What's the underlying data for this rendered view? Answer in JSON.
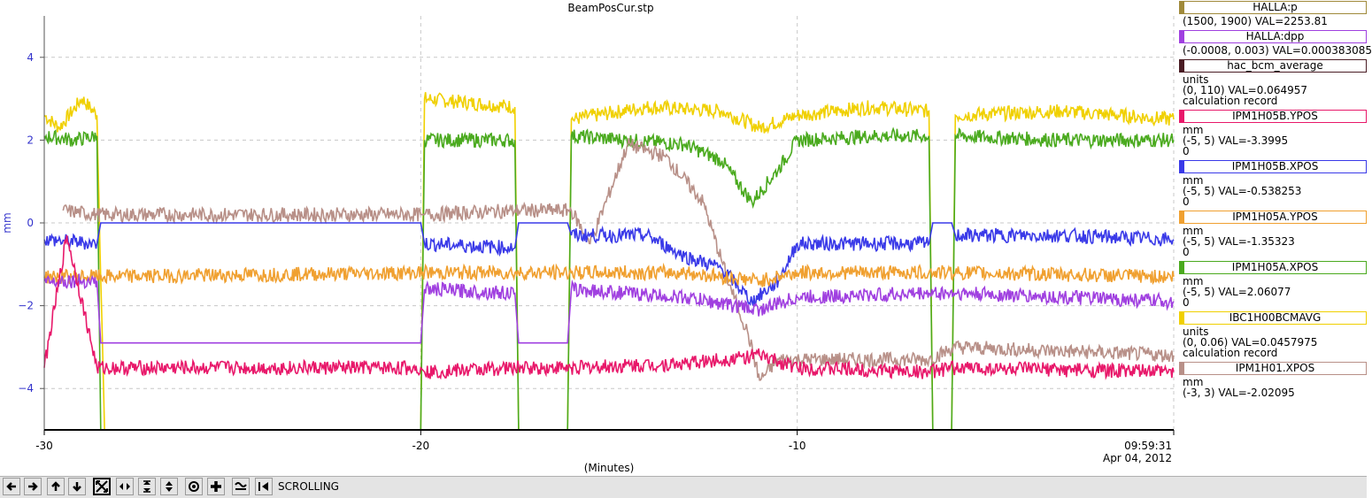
{
  "title": "BeamPosCur.stp",
  "y_axis_label": "mm",
  "x_axis_label": "(Minutes)",
  "end_time": "09:59:31",
  "end_date": "Apr 04, 2012",
  "axis_color": "#3333cc",
  "toolbar_label": "SCROLLING",
  "toolbar_icons": [
    "arrow-left-icon",
    "arrow-right-icon",
    "arrow-up-icon",
    "arrow-down-icon",
    "zoom-box-icon",
    "horizontal-zoom-icon",
    "vertical-zoom-icon",
    "vertical-pan-icon",
    "record-icon",
    "add-icon",
    "waveform-icon",
    "scroll-back-icon"
  ],
  "legend": [
    {
      "name": "HALLA:p",
      "color": "#a08a3a",
      "lines": [
        "(1500, 1900) VAL=2253.81"
      ]
    },
    {
      "name": "HALLA:dpp",
      "color": "#a040e0",
      "lines": [
        "(-0.0008, 0.003) VAL=0.000383085"
      ]
    },
    {
      "name": "hac_bcm_average",
      "color": "#4a1c24",
      "lines": [
        "units",
        "(0, 110) VAL=0.064957",
        "calculation record"
      ]
    },
    {
      "name": "IPM1H05B.YPOS",
      "color": "#e8186a",
      "lines": [
        "mm",
        "(-5, 5) VAL=-3.3995",
        "0"
      ]
    },
    {
      "name": "IPM1H05B.XPOS",
      "color": "#3a3ae8",
      "lines": [
        "mm",
        "(-5, 5) VAL=-0.538253",
        "0"
      ]
    },
    {
      "name": "IPM1H05A.YPOS",
      "color": "#f0a030",
      "lines": [
        "mm",
        "(-5, 5) VAL=-1.35323",
        "0"
      ]
    },
    {
      "name": "IPM1H05A.XPOS",
      "color": "#4aaa1e",
      "lines": [
        "mm",
        "(-5, 5) VAL=2.06077",
        "0"
      ]
    },
    {
      "name": "IBC1H00BCMAVG",
      "color": "#f0d000",
      "lines": [
        "units",
        "(0, 0.06) VAL=0.0457975",
        "calculation record"
      ]
    },
    {
      "name": "IPM1H01.XPOS",
      "color": "#b89088",
      "lines": [
        "mm",
        "(-3, 3) VAL=-2.02095"
      ]
    }
  ],
  "chart_data": {
    "type": "line",
    "title": "BeamPosCur.stp",
    "xlabel": "(Minutes)",
    "ylabel": "mm",
    "xlim": [
      -30,
      0
    ],
    "ylim": [
      -5,
      5
    ],
    "x_ticks": [
      -30,
      -20,
      -10
    ],
    "y_ticks": [
      -4,
      -2,
      0,
      2,
      4
    ],
    "grid": true,
    "legend_placement": "right",
    "series": [
      {
        "name": "IBC1H00BCMAVG",
        "color": "#f0d000",
        "points": [
          [
            -30,
            2.6
          ],
          [
            -29.6,
            2.3
          ],
          [
            -29,
            3.0
          ],
          [
            -28.6,
            2.6
          ],
          [
            -28.4,
            -5
          ],
          [
            -20,
            -5
          ],
          [
            -19.9,
            3.0
          ],
          [
            -17.5,
            2.8
          ],
          [
            -17.4,
            -5
          ],
          [
            -16.1,
            -5
          ],
          [
            -16.0,
            2.5
          ],
          [
            -14,
            2.8
          ],
          [
            -12,
            2.7
          ],
          [
            -11,
            2.3
          ],
          [
            -10,
            2.6
          ],
          [
            -8,
            2.8
          ],
          [
            -6.5,
            2.7
          ],
          [
            -6.4,
            -5
          ],
          [
            -5.9,
            -5
          ],
          [
            -5.8,
            2.6
          ],
          [
            -3,
            2.7
          ],
          [
            0,
            2.5
          ]
        ]
      },
      {
        "name": "IPM1H05A.XPOS",
        "color": "#4aaa1e",
        "points": [
          [
            -30,
            2.1
          ],
          [
            -29.2,
            2.0
          ],
          [
            -28.6,
            2.1
          ],
          [
            -28.5,
            -5
          ],
          [
            -20,
            -5
          ],
          [
            -19.9,
            2.0
          ],
          [
            -17.5,
            2.0
          ],
          [
            -17.4,
            -5
          ],
          [
            -16.1,
            -5
          ],
          [
            -16.0,
            2.1
          ],
          [
            -13,
            1.9
          ],
          [
            -12,
            1.5
          ],
          [
            -11.2,
            0.5
          ],
          [
            -10.5,
            1.3
          ],
          [
            -10,
            2.0
          ],
          [
            -8,
            2.1
          ],
          [
            -6.5,
            2.1
          ],
          [
            -6.4,
            -5
          ],
          [
            -5.9,
            -5
          ],
          [
            -5.8,
            2.1
          ],
          [
            -3,
            2.0
          ],
          [
            0,
            2.0
          ]
        ]
      },
      {
        "name": "IPM1H01.XPOS",
        "color": "#b89088",
        "points": [
          [
            -29.5,
            0.3
          ],
          [
            -28.6,
            0.2
          ],
          [
            -20,
            0.2
          ],
          [
            -19.9,
            0.2
          ],
          [
            -17.5,
            0.3
          ],
          [
            -16.0,
            0.3
          ],
          [
            -15.5,
            -0.5
          ],
          [
            -14.5,
            1.9
          ],
          [
            -13.5,
            1.6
          ],
          [
            -12.5,
            0.5
          ],
          [
            -11.8,
            -1.5
          ],
          [
            -11.3,
            -2.7
          ],
          [
            -11.0,
            -3.8
          ],
          [
            -10.5,
            -3.3
          ],
          [
            -6.5,
            -3.3
          ],
          [
            -5.8,
            -3.0
          ],
          [
            0,
            -3.2
          ]
        ]
      },
      {
        "name": "IPM1H05B.XPOS",
        "color": "#3a3ae8",
        "points": [
          [
            -30,
            -0.4
          ],
          [
            -28.6,
            -0.5
          ],
          [
            -28.5,
            0
          ],
          [
            -20,
            0
          ],
          [
            -19.9,
            -0.5
          ],
          [
            -17.5,
            -0.6
          ],
          [
            -17.4,
            0
          ],
          [
            -16.1,
            0
          ],
          [
            -16.0,
            -0.3
          ],
          [
            -14,
            -0.3
          ],
          [
            -13,
            -0.8
          ],
          [
            -12,
            -1.1
          ],
          [
            -11.2,
            -1.9
          ],
          [
            -10.5,
            -1.4
          ],
          [
            -10,
            -0.5
          ],
          [
            -6.5,
            -0.5
          ],
          [
            -6.4,
            0
          ],
          [
            -5.9,
            0
          ],
          [
            -5.8,
            -0.3
          ],
          [
            -3,
            -0.3
          ],
          [
            0,
            -0.4
          ]
        ]
      },
      {
        "name": "IPM1H05A.YPOS",
        "color": "#f0a030",
        "points": [
          [
            -30,
            -1.3
          ],
          [
            -28.6,
            -1.3
          ],
          [
            -19.9,
            -1.2
          ],
          [
            -17.5,
            -1.2
          ],
          [
            -16.0,
            -1.2
          ],
          [
            -13,
            -1.2
          ],
          [
            -11,
            -1.4
          ],
          [
            -10,
            -1.2
          ],
          [
            -6.5,
            -1.2
          ],
          [
            -5.8,
            -1.2
          ],
          [
            0,
            -1.3
          ]
        ]
      },
      {
        "name": "HALLA:dpp",
        "color": "#a040e0",
        "points": [
          [
            -30,
            -1.4
          ],
          [
            -28.6,
            -1.4
          ],
          [
            -28.5,
            -2.9
          ],
          [
            -20,
            -2.9
          ],
          [
            -19.9,
            -1.6
          ],
          [
            -17.5,
            -1.7
          ],
          [
            -17.4,
            -2.9
          ],
          [
            -16.1,
            -2.9
          ],
          [
            -16.0,
            -1.6
          ],
          [
            -13,
            -1.8
          ],
          [
            -11,
            -2.1
          ],
          [
            -10,
            -1.8
          ],
          [
            -6.5,
            -1.7
          ],
          [
            -5.8,
            -1.7
          ],
          [
            0,
            -1.9
          ]
        ]
      },
      {
        "name": "IPM1H05B.YPOS",
        "color": "#e8186a",
        "points": [
          [
            -30,
            -3.5
          ],
          [
            -29.4,
            -0.3
          ],
          [
            -28.6,
            -3.5
          ],
          [
            -20,
            -3.5
          ],
          [
            -19.9,
            -3.6
          ],
          [
            -17.5,
            -3.5
          ],
          [
            -16.0,
            -3.5
          ],
          [
            -13,
            -3.4
          ],
          [
            -11,
            -3.2
          ],
          [
            -10,
            -3.5
          ],
          [
            -6.5,
            -3.6
          ],
          [
            -5.8,
            -3.5
          ],
          [
            0,
            -3.6
          ]
        ]
      },
      {
        "name": "hac_bcm_average",
        "color": "#4a1c24",
        "points": [
          [
            -30,
            -5
          ],
          [
            0,
            -5
          ]
        ]
      }
    ]
  }
}
